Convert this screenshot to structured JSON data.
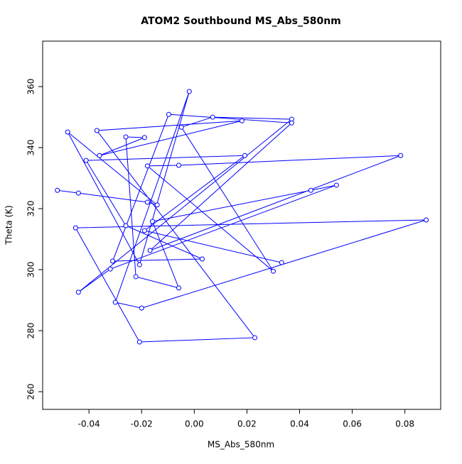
{
  "chart_data": {
    "type": "line",
    "title": "ATOM2 Southbound MS_Abs_580nm",
    "x_label": "MS_Abs_580nm",
    "y_label": "Theta (K)",
    "series": [
      {
        "color": "#0000ff",
        "x": [
          -0.052,
          -0.044,
          -0.0178,
          -0.0141,
          -0.0481,
          -0.0208,
          -0.0019,
          -0.03,
          -0.02,
          0.0881,
          -0.0451,
          -0.0208,
          0.023,
          -0.037,
          0.0181,
          -0.036,
          -0.0189,
          -0.026,
          -0.0222,
          -0.0059,
          -0.0159,
          0.0443,
          0.054,
          -0.0319,
          -0.044,
          0.037,
          0.007,
          -0.0049,
          0.03,
          -0.0178,
          -0.0059,
          0.0784,
          -0.0168,
          0.037,
          -0.0097,
          -0.031,
          0.003,
          -0.026,
          -0.0411,
          0.0192,
          -0.0189,
          0.0332
        ],
        "values": [
          326.0,
          325.1,
          322.1,
          321.2,
          345.1,
          301.6,
          358.4,
          289.3,
          287.4,
          316.3,
          313.7,
          276.3,
          277.7,
          345.6,
          348.8,
          337.4,
          343.3,
          343.5,
          297.7,
          294.0,
          315.8,
          326.0,
          327.7,
          300.2,
          292.6,
          349.3,
          350.0,
          346.7,
          299.5,
          334.0,
          334.2,
          337.4,
          306.3,
          348.1,
          350.9,
          302.8,
          303.5,
          314.4,
          335.8,
          337.4,
          312.8,
          302.3
        ]
      }
    ],
    "xlim": [
      -0.0576,
      0.0936
    ],
    "ylim": [
      254.2,
      374.9
    ],
    "xticks": [
      -0.04,
      -0.02,
      {
        "value": 0,
        "label": "0.00"
      },
      0.02,
      0.04,
      0.06,
      0.08
    ],
    "yticks": [
      260,
      280,
      300,
      320,
      340,
      360
    ],
    "markers": true
  }
}
